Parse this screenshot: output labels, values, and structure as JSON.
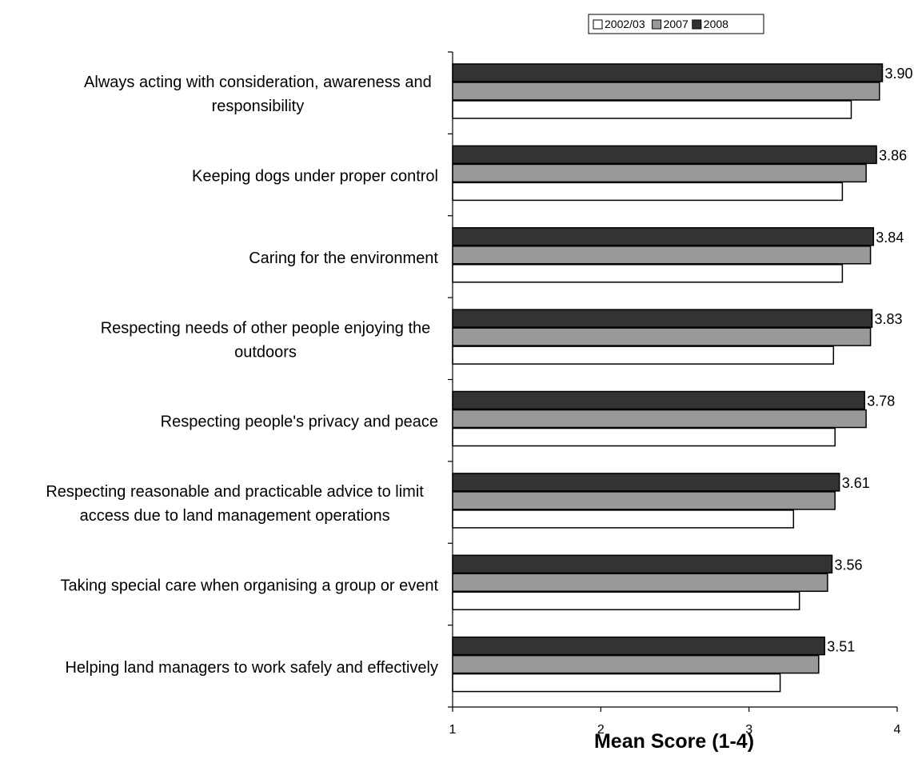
{
  "chart_data": {
    "type": "bar",
    "orientation": "horizontal",
    "title": "",
    "xlabel": "Mean Score (1-4)",
    "ylabel": "",
    "xlim": [
      1,
      4
    ],
    "x_ticks": [
      "1",
      "2",
      "3",
      "4"
    ],
    "grid": false,
    "legend_position": "top-right",
    "categories": [
      [
        "Always acting with consideration, awareness and",
        "responsibility"
      ],
      [
        "Keeping dogs under proper control"
      ],
      [
        "Caring for the environment"
      ],
      [
        "Respecting needs of other people enjoying the",
        "outdoors"
      ],
      [
        "Respecting people's privacy and peace"
      ],
      [
        "Respecting reasonable and practicable advice to limit",
        "access due to land management operations"
      ],
      [
        "Taking special care when organising a group or event"
      ],
      [
        "Helping land managers to work safely and effectively"
      ]
    ],
    "series": [
      {
        "name": "2008",
        "color": "#333333",
        "values": [
          3.9,
          3.86,
          3.84,
          3.83,
          3.78,
          3.61,
          3.56,
          3.51
        ],
        "labels": [
          "3.90",
          "3.86",
          "3.84",
          "3.83",
          "3.78",
          "3.61",
          "3.56",
          "3.51"
        ]
      },
      {
        "name": "2007",
        "color": "#999999",
        "values": [
          3.88,
          3.79,
          3.82,
          3.82,
          3.79,
          3.58,
          3.53,
          3.47
        ]
      },
      {
        "name": "2002/03",
        "color": "#ffffff",
        "values": [
          3.69,
          3.63,
          3.63,
          3.57,
          3.58,
          3.3,
          3.34,
          3.21
        ]
      }
    ],
    "legend_order": [
      "2002/03",
      "2007",
      "2008"
    ]
  }
}
